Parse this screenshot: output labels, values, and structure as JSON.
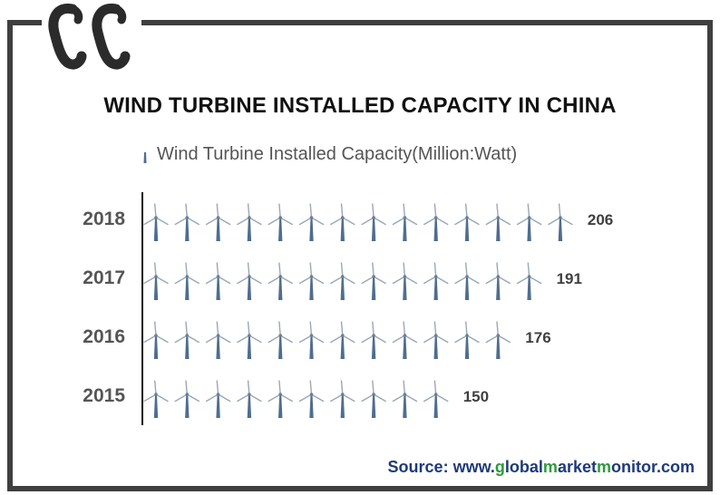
{
  "chart_data": {
    "type": "bar",
    "title": "WIND TURBINE INSTALLED CAPACITY IN CHINA",
    "series": [
      {
        "name": "Wind Turbine Installed Capacity(Million:Watt)",
        "values": [
          206,
          191,
          176,
          150
        ]
      }
    ],
    "categories": [
      "2018",
      "2017",
      "2016",
      "2015"
    ],
    "data_labels": [
      "206",
      "191",
      "176",
      "150"
    ],
    "units_per_icon": 14.7,
    "style": "pictograph",
    "icon": "wind-turbine-icon",
    "colors": {
      "tower": "#4f6d8f",
      "blade": "#9aa7b6"
    }
  },
  "source": {
    "prefix": "Source: www.",
    "g": "g",
    "lobal": "lobal",
    "m": "m",
    "arket": "arket",
    "m2": "m",
    "onitor": "onitor.com"
  },
  "logo": {
    "name": "gmm-logo-icon"
  }
}
